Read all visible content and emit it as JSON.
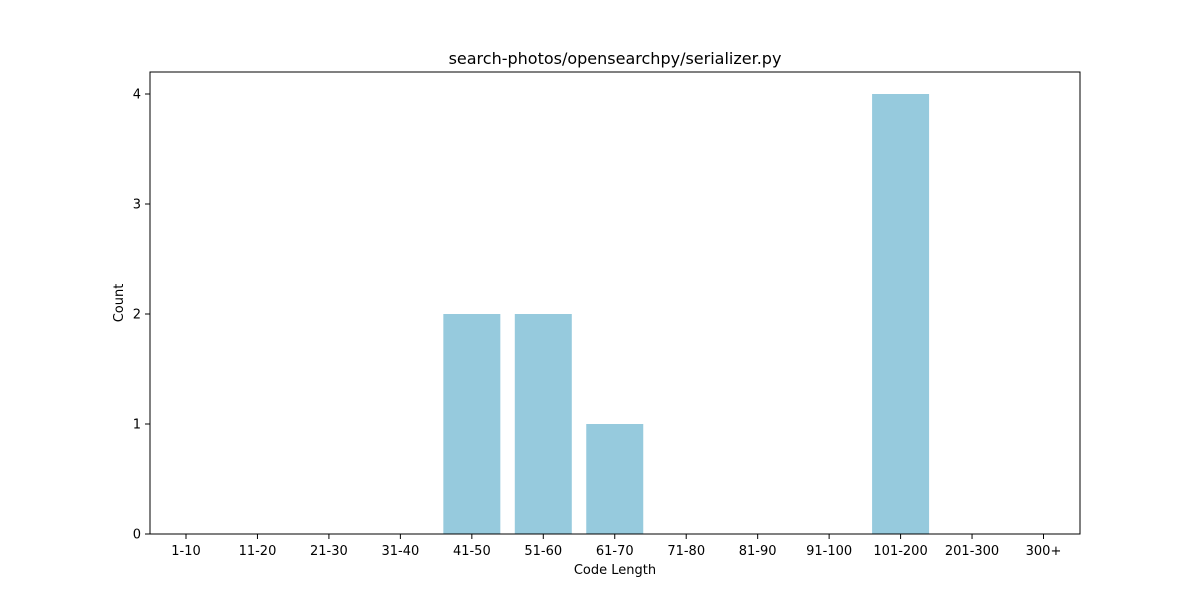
{
  "chart_data": {
    "type": "bar",
    "title": "search-photos/opensearchpy/serializer.py",
    "xlabel": "Code Length",
    "ylabel": "Count",
    "categories": [
      "1-10",
      "11-20",
      "21-30",
      "31-40",
      "41-50",
      "51-60",
      "61-70",
      "71-80",
      "81-90",
      "91-100",
      "101-200",
      "201-300",
      "300+"
    ],
    "values": [
      0,
      0,
      0,
      0,
      2,
      2,
      1,
      0,
      0,
      0,
      4,
      0,
      0
    ],
    "ylim": [
      0,
      4.2
    ],
    "yticks": [
      "0",
      "1",
      "2",
      "3",
      "4"
    ],
    "bar_color": "#96cadd",
    "grid": false,
    "legend": "none"
  }
}
